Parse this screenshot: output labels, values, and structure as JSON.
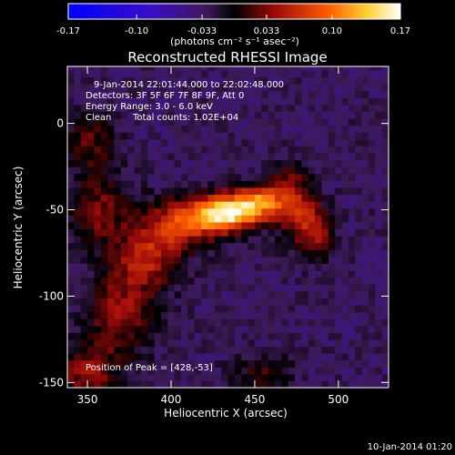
{
  "chart_data": {
    "type": "heatmap",
    "title": "Reconstructed RHESSI Image",
    "xlabel": "Heliocentric X (arcsec)",
    "ylabel": "Heliocentric Y (arcsec)",
    "xlim": [
      338,
      530
    ],
    "ylim": [
      -153,
      33
    ],
    "x_ticks": [
      350,
      400,
      450,
      500
    ],
    "y_ticks": [
      0,
      -50,
      -100,
      -150
    ],
    "colorbar": {
      "label": "(photons cm⁻² s⁻¹ asec⁻²)",
      "range": [
        -0.17,
        0.17
      ],
      "ticks": [
        "-0.17",
        "-0.10",
        "-0.033",
        "0.033",
        "0.10",
        "0.17"
      ]
    },
    "annotations": {
      "time_range": "9-Jan-2014 22:01:44.000 to 22:02:48.000",
      "detectors": "Detectors: 3F 5F 6F 7F 8F 9F, Att 0",
      "energy_range": "Energy Range: 3.0 - 6.0 keV",
      "method": "Clean",
      "total_counts": "Total counts: 1.02E+04",
      "peak": "Position of Peak = [428,-53]"
    },
    "peak_position": [
      428,
      -53
    ],
    "sources": [
      {
        "x": 432,
        "y": -52,
        "sx": 14,
        "sy": 7,
        "amp": 0.17
      },
      {
        "x": 455,
        "y": -45,
        "sx": 14,
        "sy": 7,
        "amp": 0.12
      },
      {
        "x": 478,
        "y": -55,
        "sx": 8,
        "sy": 12,
        "amp": 0.08
      },
      {
        "x": 405,
        "y": -58,
        "sx": 16,
        "sy": 10,
        "amp": 0.09
      },
      {
        "x": 385,
        "y": -78,
        "sx": 14,
        "sy": 12,
        "amp": 0.08
      },
      {
        "x": 370,
        "y": -110,
        "sx": 14,
        "sy": 16,
        "amp": 0.07
      },
      {
        "x": 350,
        "y": -145,
        "sx": 14,
        "sy": 12,
        "amp": 0.065
      },
      {
        "x": 357,
        "y": -50,
        "sx": 12,
        "sy": 14,
        "amp": 0.06
      },
      {
        "x": 352,
        "y": -10,
        "sx": 10,
        "sy": 12,
        "amp": 0.05
      },
      {
        "x": 490,
        "y": -65,
        "sx": 6,
        "sy": 10,
        "amp": 0.05
      },
      {
        "x": 455,
        "y": -145,
        "sx": 12,
        "sy": 8,
        "amp": 0.04
      },
      {
        "x": 470,
        "y": -30,
        "sx": 8,
        "sy": 6,
        "amp": 0.04
      }
    ],
    "background_level": -0.03,
    "timestamp": "10-Jan-2014 01:20"
  }
}
